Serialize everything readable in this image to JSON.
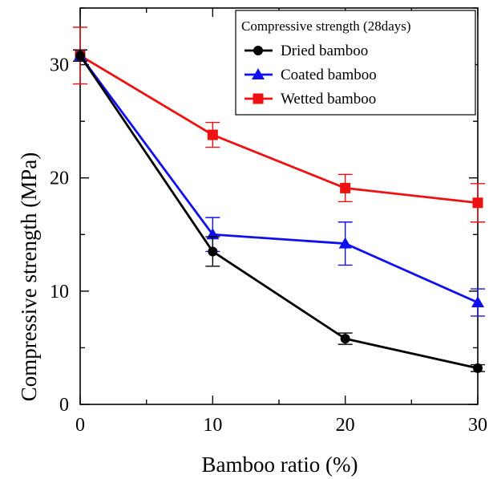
{
  "chart_data": {
    "type": "line",
    "title": "",
    "xlabel": "Bamboo ratio (%)",
    "ylabel": "Compressive strength (MPa)",
    "x": [
      0,
      10,
      20,
      30
    ],
    "xlim": [
      0,
      30
    ],
    "ylim": [
      0,
      35
    ],
    "xticks": [
      0,
      10,
      20,
      30
    ],
    "yticks": [
      0,
      10,
      20,
      30
    ],
    "grid": false,
    "legend": {
      "title": "Compressive strength (28days)",
      "position": "top-right"
    },
    "series": [
      {
        "name": "Dried bamboo",
        "color": "#000000",
        "marker": "circle",
        "values": [
          30.8,
          13.5,
          5.8,
          3.2
        ],
        "errors": [
          0.5,
          1.3,
          0.5,
          0.3
        ]
      },
      {
        "name": "Coated bamboo",
        "color": "#1010ee",
        "marker": "triangle",
        "values": [
          30.8,
          15.0,
          14.2,
          9.0
        ],
        "errors": [
          0.5,
          1.5,
          1.9,
          1.2
        ]
      },
      {
        "name": "Wetted bamboo",
        "color": "#ee1111",
        "marker": "square",
        "values": [
          30.8,
          23.8,
          19.1,
          17.8
        ],
        "errors": [
          2.5,
          1.1,
          1.2,
          1.7
        ]
      }
    ]
  }
}
